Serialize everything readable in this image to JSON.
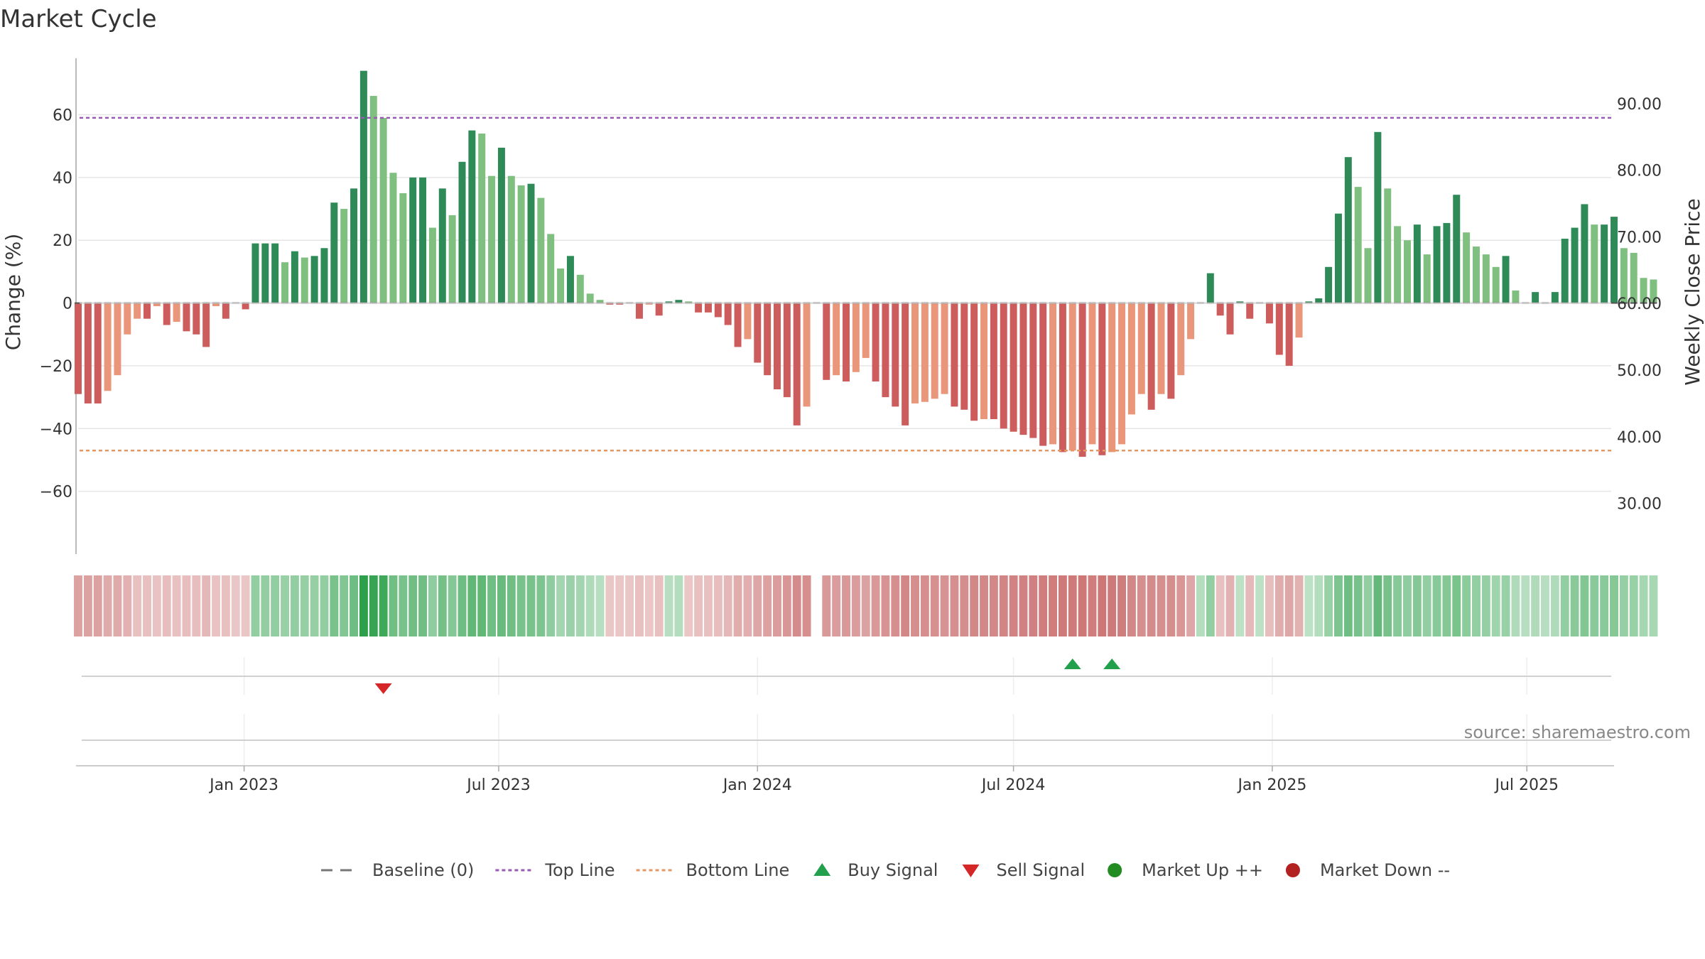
{
  "chart_data": {
    "type": "bar",
    "title": "Market Cycle",
    "ylabel": "Change (%)",
    "y2label": "Weekly Close Price",
    "source": "source: sharemaestro.com",
    "ylim": [
      -80,
      78
    ],
    "y2lim": [
      22.4,
      96.8
    ],
    "yticks": [
      60,
      40,
      20,
      0,
      -20,
      -40,
      -60
    ],
    "ytick_labels": [
      "60",
      "40",
      "20",
      "0",
      "−20",
      "−40",
      "−60"
    ],
    "y2ticks": [
      90,
      80,
      70,
      60,
      50,
      40,
      30
    ],
    "y2tick_labels": [
      "90.00",
      "80.00",
      "70.00",
      "60.00",
      "50.00",
      "40.00",
      "30.00"
    ],
    "x_start": "2022-09-05",
    "x_end": "2025-09-01",
    "xticks": [
      "2023-01-01",
      "2023-07-01",
      "2024-01-01",
      "2024-07-01",
      "2025-01-01",
      "2025-07-01"
    ],
    "xtick_labels": [
      "Jan 2023",
      "Jul 2023",
      "Jan 2024",
      "Jul 2024",
      "Jan 2025",
      "Jul 2025"
    ],
    "top_line": 59,
    "bottom_line": -47,
    "grid": true,
    "legend_position": "bottom",
    "colors": {
      "up_strong": "#2e8b57",
      "up_weak": "#7fbf7f",
      "down_strong": "#cd5c5c",
      "down_weak": "#e9967a",
      "top_line": "#9b59b6",
      "bottom_line": "#e59866",
      "baseline": "#777777",
      "buy": "#22a04b",
      "sell": "#d62728",
      "market_up": "#228b22",
      "market_down": "#b22222"
    },
    "series": [
      {
        "name": "Change (%)",
        "start_date": "2022-09-05",
        "step_days": 7,
        "values": [
          -29,
          -32,
          -32,
          -28,
          -23,
          -10,
          -5,
          -5,
          -1,
          -7,
          -6,
          -9,
          -10,
          -14,
          -1,
          -5,
          0,
          -2,
          19,
          19,
          19,
          13,
          16.5,
          14.5,
          15,
          17.5,
          32,
          30,
          36.5,
          74,
          66,
          59,
          41.5,
          35,
          40,
          40,
          24,
          36.5,
          28,
          45,
          55,
          54,
          40.5,
          49.5,
          40.5,
          37.5,
          38,
          33.5,
          22,
          11,
          15,
          9,
          3,
          1,
          -0.5,
          -0.5,
          0,
          -5,
          -0.5,
          -4,
          0.5,
          1,
          0.5,
          -3,
          -3,
          -4.5,
          -7,
          -14,
          -11.5,
          -19,
          -23,
          -27.5,
          -30,
          -39,
          -33,
          0,
          -24.5,
          -23,
          -25,
          -22,
          -17.5,
          -25,
          -30,
          -33,
          -39,
          -32,
          -31.5,
          -30.5,
          -29,
          -33,
          -34,
          -37.5,
          -37,
          -37,
          -40,
          -41,
          -42,
          -43,
          -45.5,
          -45,
          -47.5,
          -47,
          -49,
          -45,
          -48.5,
          -47.5,
          -45,
          -35.5,
          -29,
          -34,
          -29,
          -30.5,
          -23,
          -11.5,
          0,
          9.5,
          -4,
          -10,
          0.5,
          -5,
          0,
          -6.5,
          -16.5,
          -20,
          -11,
          0.5,
          1.5,
          11.5,
          28.5,
          46.5,
          37,
          17.5,
          54.5,
          36.5,
          24.5,
          20,
          25,
          15.5,
          24.5,
          25.5,
          34.5,
          22.5,
          18,
          15.5,
          11.5,
          15,
          4,
          0,
          3.5,
          0,
          3.5,
          20.5,
          24,
          31.5,
          25,
          25,
          27.5,
          17.5,
          16,
          8,
          7.5
        ]
      }
    ],
    "weekly_close_price": [],
    "heat_strip": {
      "values": [
        -0.42,
        -0.42,
        -0.42,
        -0.36,
        -0.36,
        -0.3,
        -0.2,
        -0.2,
        -0.18,
        -0.22,
        -0.2,
        -0.22,
        -0.22,
        -0.26,
        -0.18,
        -0.2,
        -0.15,
        -0.16,
        0.4,
        0.4,
        0.4,
        0.36,
        0.4,
        0.38,
        0.38,
        0.4,
        0.55,
        0.5,
        0.62,
        1.0,
        0.95,
        0.9,
        0.6,
        0.55,
        0.6,
        0.6,
        0.42,
        0.58,
        0.48,
        0.62,
        0.7,
        0.7,
        0.6,
        0.65,
        0.6,
        0.55,
        0.55,
        0.52,
        0.42,
        0.3,
        0.35,
        0.3,
        0.22,
        0.18,
        -0.15,
        -0.15,
        -0.15,
        -0.2,
        -0.16,
        -0.2,
        0.18,
        0.2,
        -0.16,
        -0.2,
        -0.2,
        -0.22,
        -0.26,
        -0.34,
        -0.32,
        -0.38,
        -0.42,
        -0.46,
        -0.5,
        -0.58,
        -0.55,
        null,
        -0.48,
        -0.46,
        -0.48,
        -0.46,
        -0.42,
        -0.48,
        -0.52,
        -0.55,
        -0.6,
        -0.55,
        -0.55,
        -0.54,
        -0.52,
        -0.55,
        -0.56,
        -0.6,
        -0.6,
        -0.6,
        -0.62,
        -0.64,
        -0.65,
        -0.66,
        -0.68,
        -0.68,
        -0.7,
        -0.7,
        -0.72,
        -0.68,
        -0.72,
        -0.7,
        -0.68,
        -0.6,
        -0.55,
        -0.58,
        -0.55,
        -0.56,
        -0.5,
        -0.38,
        0.2,
        0.4,
        -0.2,
        -0.3,
        0.15,
        -0.25,
        0.15,
        -0.22,
        -0.34,
        -0.38,
        -0.3,
        0.15,
        0.2,
        0.36,
        0.52,
        0.62,
        0.56,
        0.4,
        0.68,
        0.56,
        0.46,
        0.42,
        0.48,
        0.4,
        0.46,
        0.48,
        0.54,
        0.44,
        0.4,
        0.38,
        0.32,
        0.36,
        0.22,
        0.18,
        0.22,
        0.18,
        0.22,
        0.4,
        0.45,
        0.5,
        0.45,
        0.45,
        0.48,
        0.38,
        0.36,
        0.28,
        0.27
      ]
    },
    "signals": [
      {
        "type": "sell",
        "date": "2023-04-10"
      },
      {
        "type": "buy",
        "date": "2024-08-12"
      },
      {
        "type": "buy",
        "date": "2024-09-09"
      }
    ],
    "legend": [
      {
        "key": "baseline",
        "label": "Baseline (0)"
      },
      {
        "key": "top",
        "label": "Top Line"
      },
      {
        "key": "bottom",
        "label": "Bottom Line"
      },
      {
        "key": "buy",
        "label": "Buy Signal"
      },
      {
        "key": "sell",
        "label": "Sell Signal"
      },
      {
        "key": "up",
        "label": "Market Up ++"
      },
      {
        "key": "down",
        "label": "Market Down --"
      }
    ]
  }
}
